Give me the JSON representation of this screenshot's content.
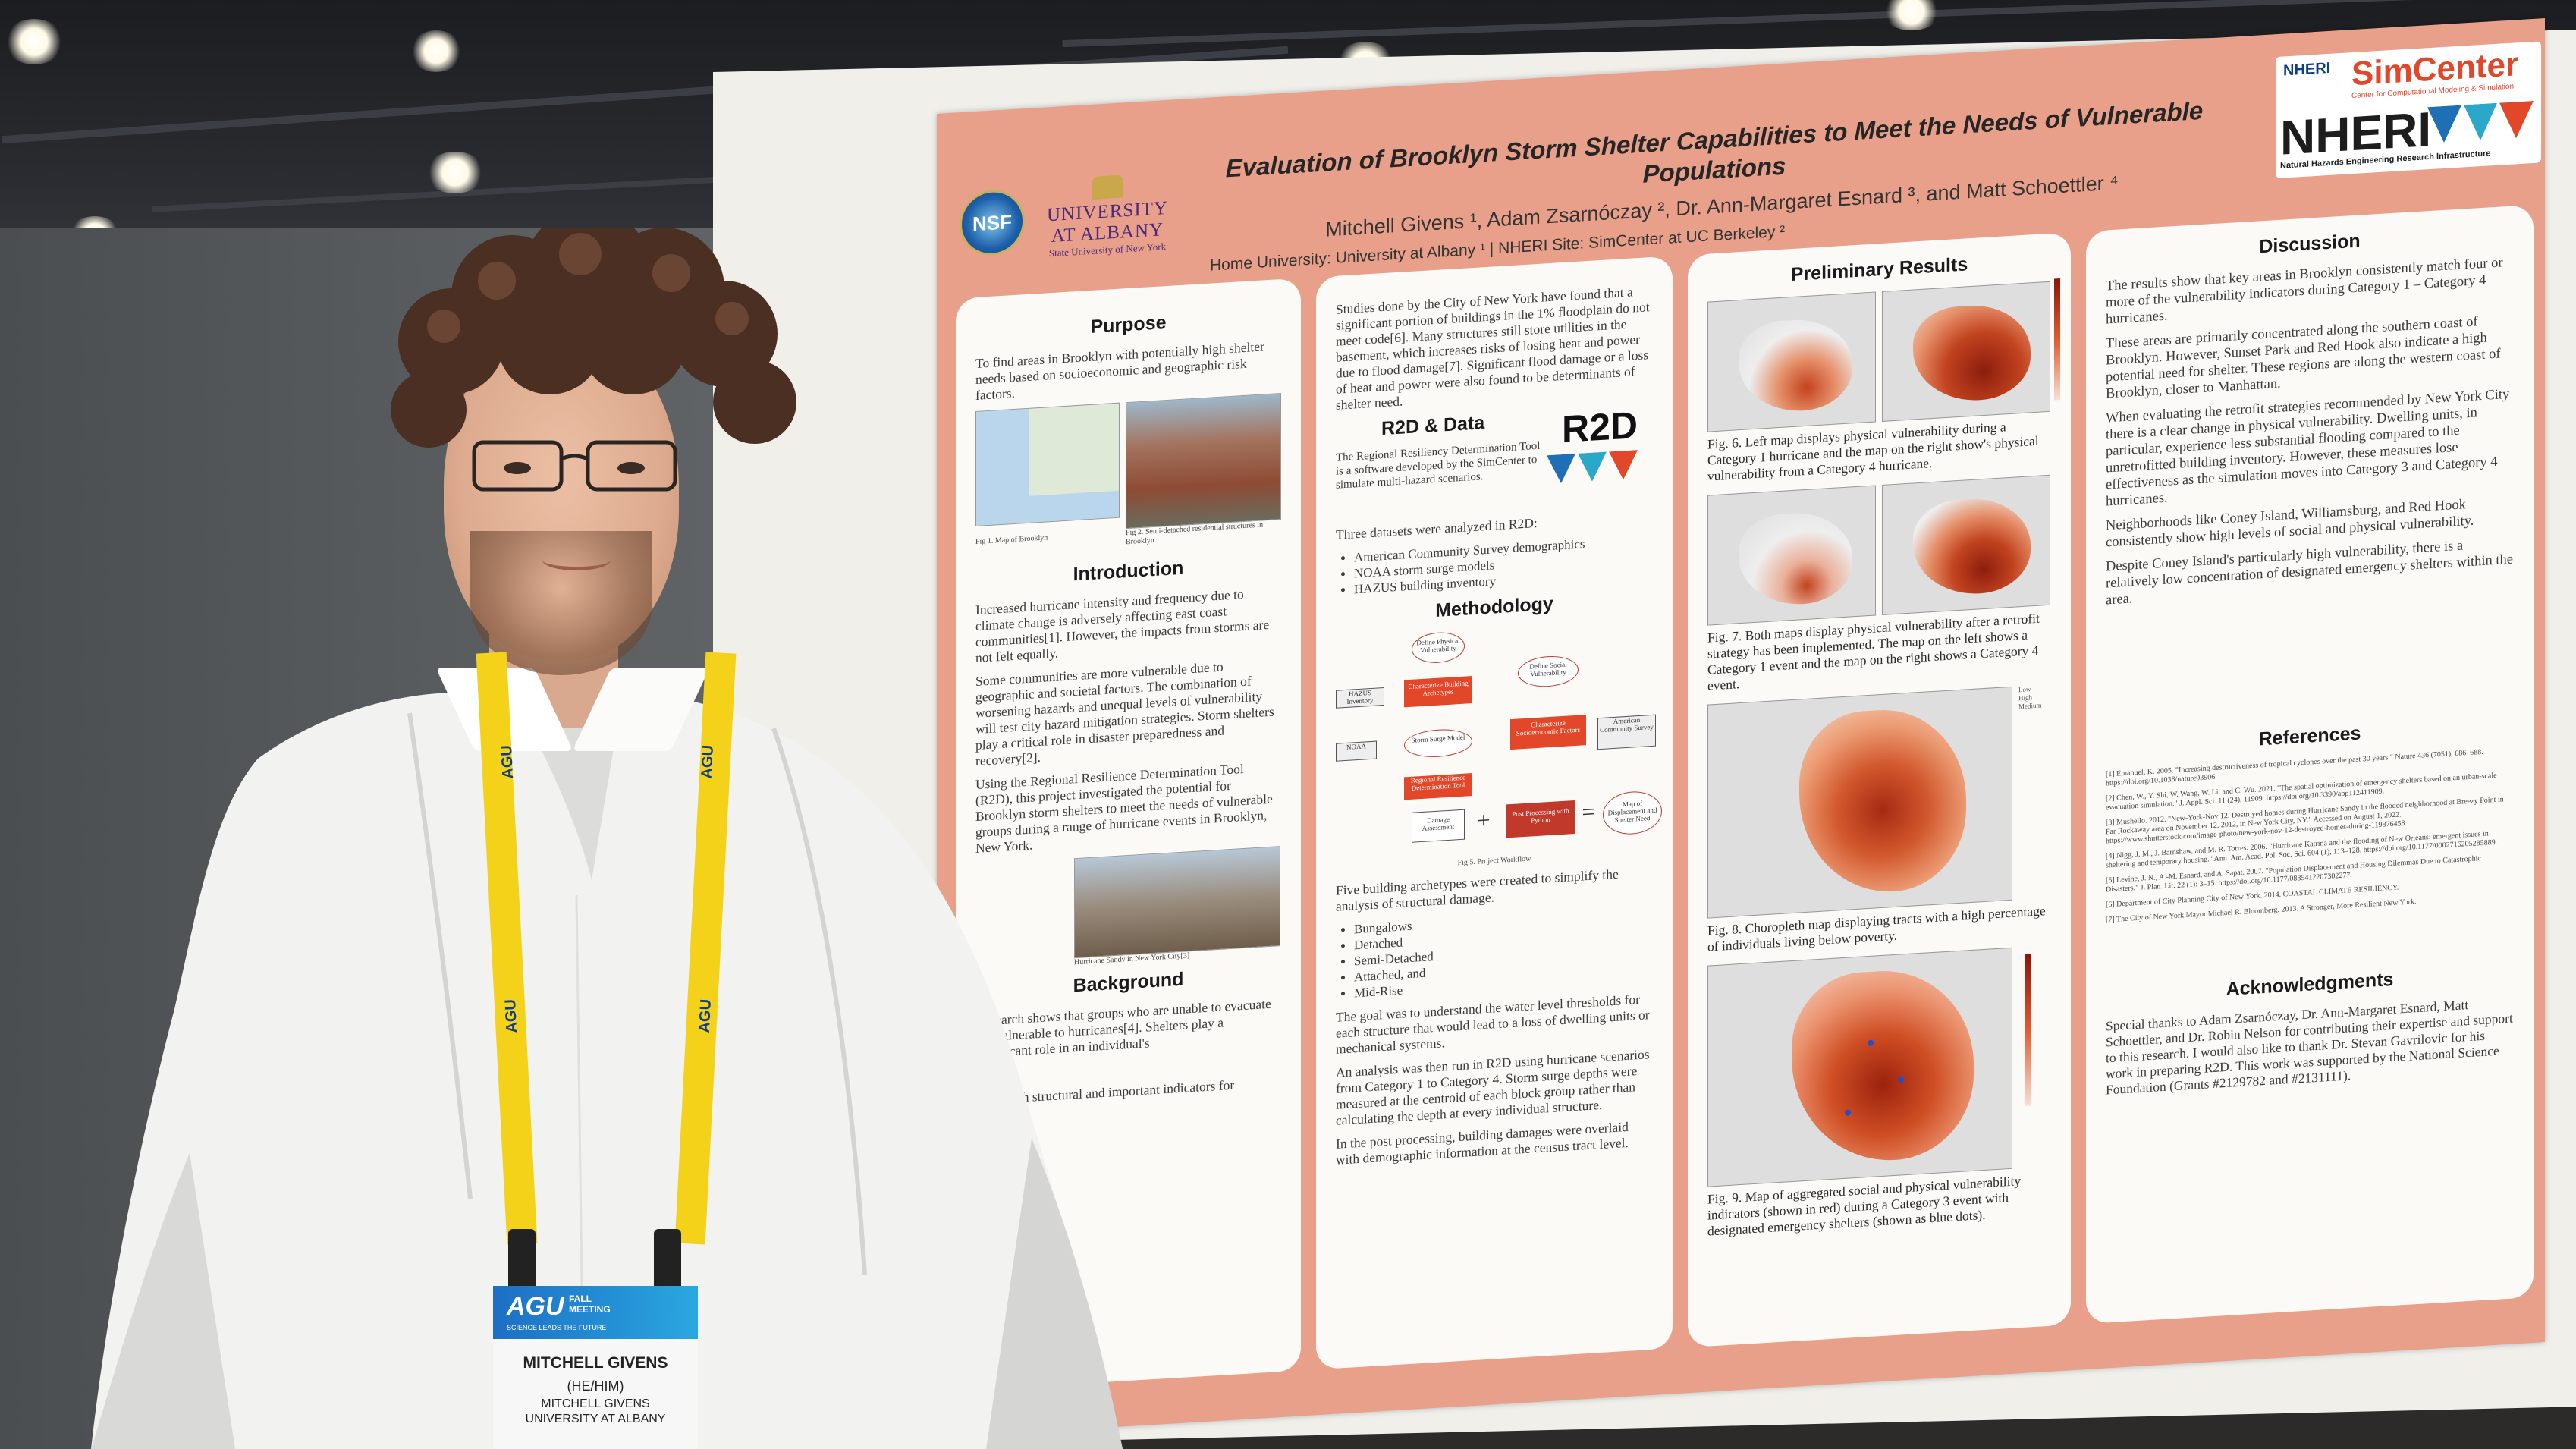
{
  "poster": {
    "title": "Evaluation of Brooklyn Storm Shelter Capabilities to Meet the Needs of Vulnerable Populations",
    "authors": "Mitchell Givens ¹, Adam Zsarnóczay ², Dr. Ann-Margaret Esnard ³, and Matt Schoettler ⁴",
    "home_line": "Home University: University at Albany ¹ | NHERI Site: SimCenter at UC Berkeley ²",
    "logos": {
      "nsf": "NSF",
      "university_line1": "UNIVERSITY",
      "university_line2": "AT ALBANY",
      "university_line3": "State University of New York",
      "nheri_small": "NHERI",
      "simcenter": "SimCenter",
      "simcenter_sub": "Center for Computational Modeling & Simulation",
      "nheri_big": "NHERI",
      "nheri_sub": "Natural Hazards Engineering Research Infrastructure"
    },
    "col1": {
      "purpose_heading": "Purpose",
      "purpose_text": "To find areas in Brooklyn with potentially high shelter needs based on socioeconomic and geographic risk factors.",
      "fig1_caption": "Fig 1. Map of Brooklyn",
      "fig2_caption": "Fig 2. Semi-detached residential structures in Brooklyn",
      "intro_heading": "Introduction",
      "intro_p1": "Increased hurricane intensity and frequency due to climate change is adversely affecting east coast communities[1]. However, the impacts from storms are not felt equally.",
      "intro_p2": "Some communities are more vulnerable due to geographic and societal factors. The combination of worsening hazards and unequal levels of vulnerability will test city hazard mitigation strategies. Storm shelters play a critical role in disaster preparedness and recovery[2].",
      "intro_p3": "Using the Regional Resilience Determination Tool (R2D), this project investigated the potential for Brooklyn storm shelters to meet the needs of vulnerable groups during a range of hurricane events in Brooklyn, New York.",
      "fig3_caption": "Hurricane Sandy in New York City[3]",
      "background_heading": "Background",
      "background_p1": "Research shows that groups who are unable to evacuate are vulnerable to hurricanes[4]. Shelters play a significant role in an individual's",
      "background_p2": "ip",
      "background_p3": "ation with structural and important indicators for"
    },
    "col2": {
      "text_top": "Studies done by the City of New York have found that a significant portion of buildings in the 1% floodplain do not meet code[6]. Many structures still store utilities in the basement, which increases risks of losing heat and power due to flood damage[7]. Significant flood damage or a loss of heat and power were also found to be determinants of shelter need.",
      "r2d_heading": "R2D & Data",
      "r2d_logo": "R2D",
      "r2d_text": "The Regional Resiliency Determination Tool is a software developed by the SimCenter to simulate multi-hazard scenarios.",
      "datasets_intro": "Three datasets were analyzed in R2D:",
      "datasets": [
        "American Community Survey demographics",
        "NOAA storm surge models",
        "HAZUS building inventory"
      ],
      "method_heading": "Methodology",
      "workflow": {
        "define_physical": "Define Physical Vulnerability",
        "char_building": "Characterize Building Archetypes",
        "hazus": "HAZUS Inventory",
        "noaa": "NOAA",
        "storm_surge": "Storm Surge Model",
        "regional": "Regional Resilience Determination Tool",
        "define_social": "Define Social Vulnerability",
        "char_socio": "Characterize Socioeconomic Factors",
        "acs": "American Community Survey",
        "damage": "Damage Assessment",
        "post": "Post Processing with Python",
        "map_out": "Map of Displacement and Shelter Need",
        "plus": "+",
        "equals": "="
      },
      "fig5_caption": "Fig 5. Project Workflow",
      "archetype_text": "Five building archetypes were created to simplify the analysis of structural damage.",
      "archetypes": [
        "Bungalows",
        "Detached",
        "Semi-Detached",
        "Attached, and",
        "Mid-Rise"
      ],
      "goal_text": "The goal was to understand the water level thresholds for each structure that would lead to a loss of dwelling units or mechanical systems.",
      "analysis_text": "An analysis was then run in R2D using hurricane scenarios from Category 1 to Category 4. Storm surge depths were measured at the centroid of each block group rather than calculating the depth at every individual structure.",
      "post_text": "In the post processing, building damages were overlaid with demographic information at the census tract level."
    },
    "col3": {
      "heading": "Preliminary Results",
      "fig6_caption": "Fig. 6. Left map displays physical vulnerability during a Category 1 hurricane and the map on the right show's physical vulnerability from a Category 4 hurricane.",
      "fig7_caption": "Fig. 7. Both maps display physical vulnerability after a retrofit strategy has been implemented. The map on the left shows a Category 1 event and the map on the right shows a Category 4 event.",
      "fig8_caption": "Fig. 8. Choropleth map displaying tracts with a high percentage of individuals living below poverty.",
      "fig8_legend": [
        "Low",
        "High",
        "Medium"
      ],
      "fig9_caption": "Fig. 9. Map of aggregated social and physical vulnerability indicators (shown in red) during a Category 3 event with designated emergency shelters (shown as blue dots)."
    },
    "col4": {
      "discussion_heading": "Discussion",
      "disc_p1": "The results show that key areas in Brooklyn consistently match four or more of the vulnerability indicators during Category 1 – Category 4 hurricanes.",
      "disc_p2": "These areas are primarily concentrated along the southern coast of Brooklyn. However, Sunset Park and Red Hook also indicate a high potential need for shelter. These regions are along the western coast of Brooklyn, closer to Manhattan.",
      "disc_p3": "When evaluating the retrofit strategies recommended by New York City there is a clear change in physical vulnerability. Dwelling units, in particular, experience less substantial flooding compared to the unretrofitted building inventory. However, these measures lose effectiveness as the simulation moves into Category 3 and Category 4 hurricanes.",
      "disc_p4": "Neighborhoods like Coney Island, Williamsburg, and Red Hook consistently show high levels of social and physical vulnerability.",
      "disc_p5": "Despite Coney Island's particularly high vulnerability, there is a relatively low concentration of designated emergency shelters within the area.",
      "references_heading": "References",
      "references": [
        "[1] Emanuel, K. 2005. \"Increasing destructiveness of tropical cyclones over the past 30 years.\" Nature 436 (7051), 686–688. https://doi.org/10.1038/nature03906.",
        "[2] Chen, W., Y. Shi, W. Wang, W. Li, and C. Wu. 2021. \"The spatial optimization of emergency shelters based on an urban-scale evacuation simulation.\" J. Appl. Sci. 11 (24), 11909. https://doi.org/10.3390/app112411909.",
        "[3] Mushello. 2012. \"New-York-Nov 12. Destroyed homes during Hurricane Sandy in the flooded neighborhood at Breezy Point in Far Rockaway area on November 12, 2012, in New York City, NY.\" Accessed on August 1, 2022. https://www.shutterstock.com/image-photo/new-york-nov-12-destroyed-homes-during-119876458.",
        "[4] Nigg, J. M., J. Barnshaw, and M. R. Torres. 2006. \"Hurricane Katrina and the flooding of New Orleans: emergent issues in sheltering and temporary housing.\" Ann. Am. Acad. Pol. Soc. Sci. 604 (1), 113–128. https://doi.org/10.1177/0002716205285889.",
        "[5] Levine, J. N., A.-M. Esnard, and A. Sapat. 2007. \"Population Displacement and Housing Dilemmas Due to Catastrophic Disasters.\" J. Plan. Lit. 22 (1): 3–15. https://doi.org/10.1177/0885412207302277.",
        "[6] Department of City Planning City of New York. 2014. COASTAL CLIMATE RESILIENCY.",
        "[7] The City of New York Mayor Michael R. Bloomberg. 2013. A Stronger, More Resilient New York."
      ],
      "ack_heading": "Acknowledgments",
      "ack_text": "Special thanks to Adam Zsarnóczay, Dr. Ann-Margaret Esnard, Matt Schoettler, and Dr. Robin Nelson for contributing their expertise and support to this research. I would also like to thank Dr. Stevan Gavrilovic for his work in preparing R2D. This work was supported by the National Science Foundation (Grants #2129782 and #2131111)."
    }
  },
  "badge": {
    "conference": "AGU",
    "conference_sub1": "FALL",
    "conference_sub2": "MEETING",
    "tagline": "SCIENCE LEADS THE FUTURE",
    "name": "MITCHELL GIVENS",
    "pronouns": "(HE/HIM)",
    "name_small": "MITCHELL GIVENS",
    "affiliation": "UNIVERSITY AT ALBANY"
  },
  "lanyard_text": "AGU"
}
